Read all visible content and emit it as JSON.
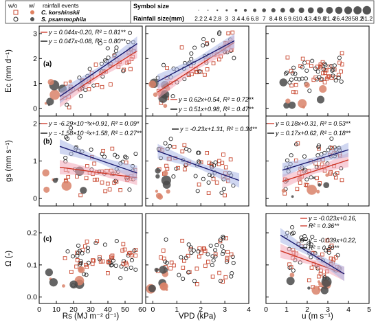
{
  "legend": {
    "wo": "w/o",
    "w": "w/",
    "events": "rainfall events",
    "species": [
      "C. korshinskii",
      "S. psammophila"
    ],
    "symbol_size_title": "Symbol size",
    "rainfall_title": "Rainfall size(mm)",
    "rainfall_sizes": [
      "2.2",
      "2.4",
      "2.8",
      "3",
      "3.4",
      "4.6",
      "6.8",
      "7",
      "8.4",
      "8.6",
      "9.6",
      "10.4",
      "13.4",
      "19.8",
      "21.4",
      "26.4",
      "28",
      "58.2",
      "81.2"
    ],
    "colors": {
      "ck": "#c8472f",
      "sp": "#2a2a2a",
      "ck_fit": "#cc3322",
      "sp_fit": "#1a1a70",
      "ck_band": "#f2a7b8",
      "sp_band": "#a9b6e6"
    }
  },
  "chart_data": {
    "type": "scatter",
    "panel_labels": [
      "(a)",
      "(b)",
      "(c)"
    ],
    "rows": [
      {
        "ylabel": "Ec (mm d-1)",
        "yticks": [
          "0",
          "1",
          "2",
          "3"
        ],
        "ylim": [
          -0.3,
          3.3
        ]
      },
      {
        "ylabel": "gs (mm s-1)",
        "yticks": [
          "0",
          "1",
          "2"
        ],
        "ylim": [
          -0.2,
          2.2
        ]
      },
      {
        "ylabel": "Ω (-)",
        "yticks": [
          "0.0",
          "0.1",
          "0.2"
        ],
        "ylim": [
          -0.02,
          0.26
        ]
      }
    ],
    "cols": [
      {
        "xlabel": "Rs (MJ m-2 d-1)",
        "xticks": [
          "0",
          "10",
          "20",
          "30",
          "40",
          "50",
          "60"
        ],
        "xlim": [
          0,
          60
        ]
      },
      {
        "xlabel": "VPD (kPa)",
        "xticks": [
          "0",
          "1",
          "2",
          "3",
          "4"
        ],
        "xlim": [
          -0.3,
          4
        ]
      },
      {
        "xlabel": "u (m s-1)",
        "xticks": [
          "0",
          "1",
          "2",
          "3",
          "4",
          "5"
        ],
        "xlim": [
          0,
          5
        ]
      }
    ],
    "fits": {
      "a1": {
        "ck": {
          "text": "y = 0.044x-0.20, R2 = 0.81**",
          "slope": 0.044,
          "intercept": -0.2,
          "x": [
            12,
            57
          ]
        },
        "sp": {
          "text": "y = 0.047x-0.08, R2 = 0.80**",
          "slope": 0.047,
          "intercept": -0.08,
          "x": [
            12,
            57
          ]
        }
      },
      "a2": {
        "ck": {
          "text": "y = 0.62x+0.54, R2 = 0.72**",
          "slope": 0.62,
          "intercept": 0.54,
          "x": [
            0.2,
            3.4
          ]
        },
        "sp": {
          "text": "y = 0.51x+0.98, R2 = 0.47**",
          "slope": 0.51,
          "intercept": 0.98,
          "x": [
            0.2,
            3.4
          ]
        }
      },
      "b1": {
        "ck": {
          "text": "y = -6.29×10-3x+0.91, R2 = 0.09*",
          "slope": -0.00629,
          "intercept": 0.91,
          "x": [
            12,
            57
          ]
        },
        "sp": {
          "text": "y = -1.58×10-2x+1.58, R2 = 0.27**",
          "slope": -0.0158,
          "intercept": 1.58,
          "x": [
            12,
            57
          ]
        }
      },
      "b2": {
        "sp": {
          "text": "y = -0.23x+1.31, R2 = 0.34**",
          "slope": -0.23,
          "intercept": 1.31,
          "x": [
            0.2,
            3.6
          ]
        }
      },
      "b3": {
        "ck": {
          "text": "y = 0.18x+0.31, R2 = 0.53**",
          "slope": 0.18,
          "intercept": 0.31,
          "x": [
            0.8,
            4
          ]
        },
        "sp": {
          "text": "y = 0.17x+0.62, R2 = 0.18**",
          "slope": 0.17,
          "intercept": 0.62,
          "x": [
            0.8,
            4
          ]
        }
      },
      "c3": {
        "ck": {
          "text": "y = -0.023x+0.16, R2 = 0.36**",
          "slope": -0.023,
          "intercept": 0.16,
          "x": [
            0.7,
            3.8
          ]
        },
        "sp": {
          "text": "y = -0.039x+0.22, R2 = 0.50**",
          "slope": -0.039,
          "intercept": 0.22,
          "x": [
            0.7,
            3.8
          ]
        }
      }
    }
  }
}
